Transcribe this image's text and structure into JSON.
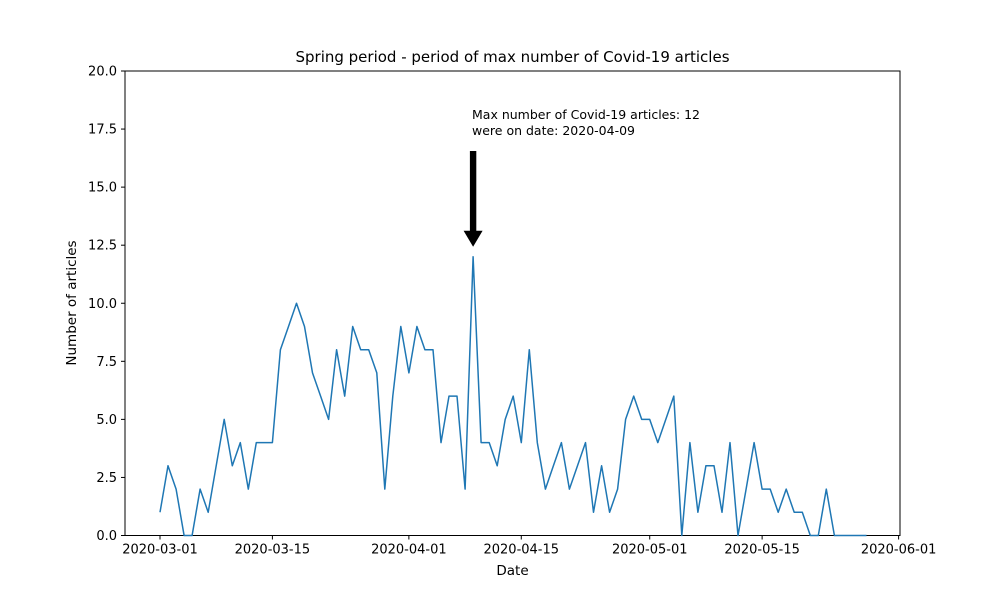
{
  "figure": {
    "background": "#ffffff"
  },
  "chart_data": {
    "type": "line",
    "title": "Spring period - period of max number of Covid-19 articles",
    "xlabel": "Date",
    "ylabel": "Number of articles",
    "ylim": [
      0.0,
      20.0
    ],
    "grid": false,
    "legend": "none",
    "line_color": "#1f77b4",
    "y_tick_labels": [
      "0.0",
      "2.5",
      "5.0",
      "7.5",
      "10.0",
      "12.5",
      "15.0",
      "17.5",
      "20.0"
    ],
    "y_tick_values": [
      0,
      2.5,
      5,
      7.5,
      10,
      12.5,
      15,
      17.5,
      20
    ],
    "x_tick_labels": [
      "2020-03-01",
      "2020-03-15",
      "2020-04-01",
      "2020-04-15",
      "2020-05-01",
      "2020-05-15",
      "2020-06-01"
    ],
    "x_tick_day_offsets": [
      0,
      14,
      31,
      45,
      61,
      75,
      92
    ],
    "max_value": 12,
    "max_date": "2020-04-09",
    "annotation": {
      "text_line1": "Max number of Covid-19 articles: 12",
      "text_line2": "were on date: 2020-04-09",
      "arrow_color": "#000000",
      "points_to_date": "2020-04-09",
      "points_to_day_offset": 39
    },
    "dates": [
      "2020-03-01",
      "2020-03-02",
      "2020-03-03",
      "2020-03-04",
      "2020-03-05",
      "2020-03-06",
      "2020-03-07",
      "2020-03-08",
      "2020-03-09",
      "2020-03-10",
      "2020-03-11",
      "2020-03-12",
      "2020-03-13",
      "2020-03-14",
      "2020-03-15",
      "2020-03-16",
      "2020-03-17",
      "2020-03-18",
      "2020-03-19",
      "2020-03-20",
      "2020-03-21",
      "2020-03-22",
      "2020-03-23",
      "2020-03-24",
      "2020-03-25",
      "2020-03-26",
      "2020-03-27",
      "2020-03-28",
      "2020-03-29",
      "2020-03-30",
      "2020-03-31",
      "2020-04-01",
      "2020-04-02",
      "2020-04-03",
      "2020-04-04",
      "2020-04-05",
      "2020-04-06",
      "2020-04-07",
      "2020-04-08",
      "2020-04-09",
      "2020-04-10",
      "2020-04-11",
      "2020-04-12",
      "2020-04-13",
      "2020-04-14",
      "2020-04-15",
      "2020-04-16",
      "2020-04-17",
      "2020-04-18",
      "2020-04-19",
      "2020-04-20",
      "2020-04-21",
      "2020-04-22",
      "2020-04-23",
      "2020-04-24",
      "2020-04-25",
      "2020-04-26",
      "2020-04-27",
      "2020-04-28",
      "2020-04-29",
      "2020-04-30",
      "2020-05-01",
      "2020-05-02",
      "2020-05-03",
      "2020-05-04",
      "2020-05-05",
      "2020-05-06",
      "2020-05-07",
      "2020-05-08",
      "2020-05-09",
      "2020-05-10",
      "2020-05-11",
      "2020-05-12",
      "2020-05-13",
      "2020-05-14",
      "2020-05-15",
      "2020-05-16",
      "2020-05-17",
      "2020-05-18",
      "2020-05-19",
      "2020-05-20",
      "2020-05-21",
      "2020-05-22",
      "2020-05-23",
      "2020-05-24",
      "2020-05-25",
      "2020-05-26",
      "2020-05-27",
      "2020-05-28"
    ],
    "values": [
      1,
      3,
      2,
      0,
      0,
      2,
      1,
      3,
      5,
      3,
      4,
      2,
      4,
      4,
      4,
      8,
      9,
      10,
      9,
      7,
      6,
      5,
      8,
      6,
      9,
      8,
      8,
      7,
      2,
      6,
      9,
      7,
      9,
      8,
      8,
      4,
      6,
      6,
      2,
      12,
      4,
      4,
      3,
      5,
      6,
      4,
      8,
      4,
      2,
      3,
      4,
      2,
      3,
      4,
      1,
      3,
      1,
      2,
      5,
      6,
      5,
      5,
      4,
      5,
      6,
      0,
      4,
      1,
      3,
      3,
      1,
      4,
      0,
      2,
      4,
      2,
      2,
      1,
      2,
      1,
      1,
      0,
      0,
      2,
      0,
      0,
      0,
      0,
      0
    ]
  }
}
